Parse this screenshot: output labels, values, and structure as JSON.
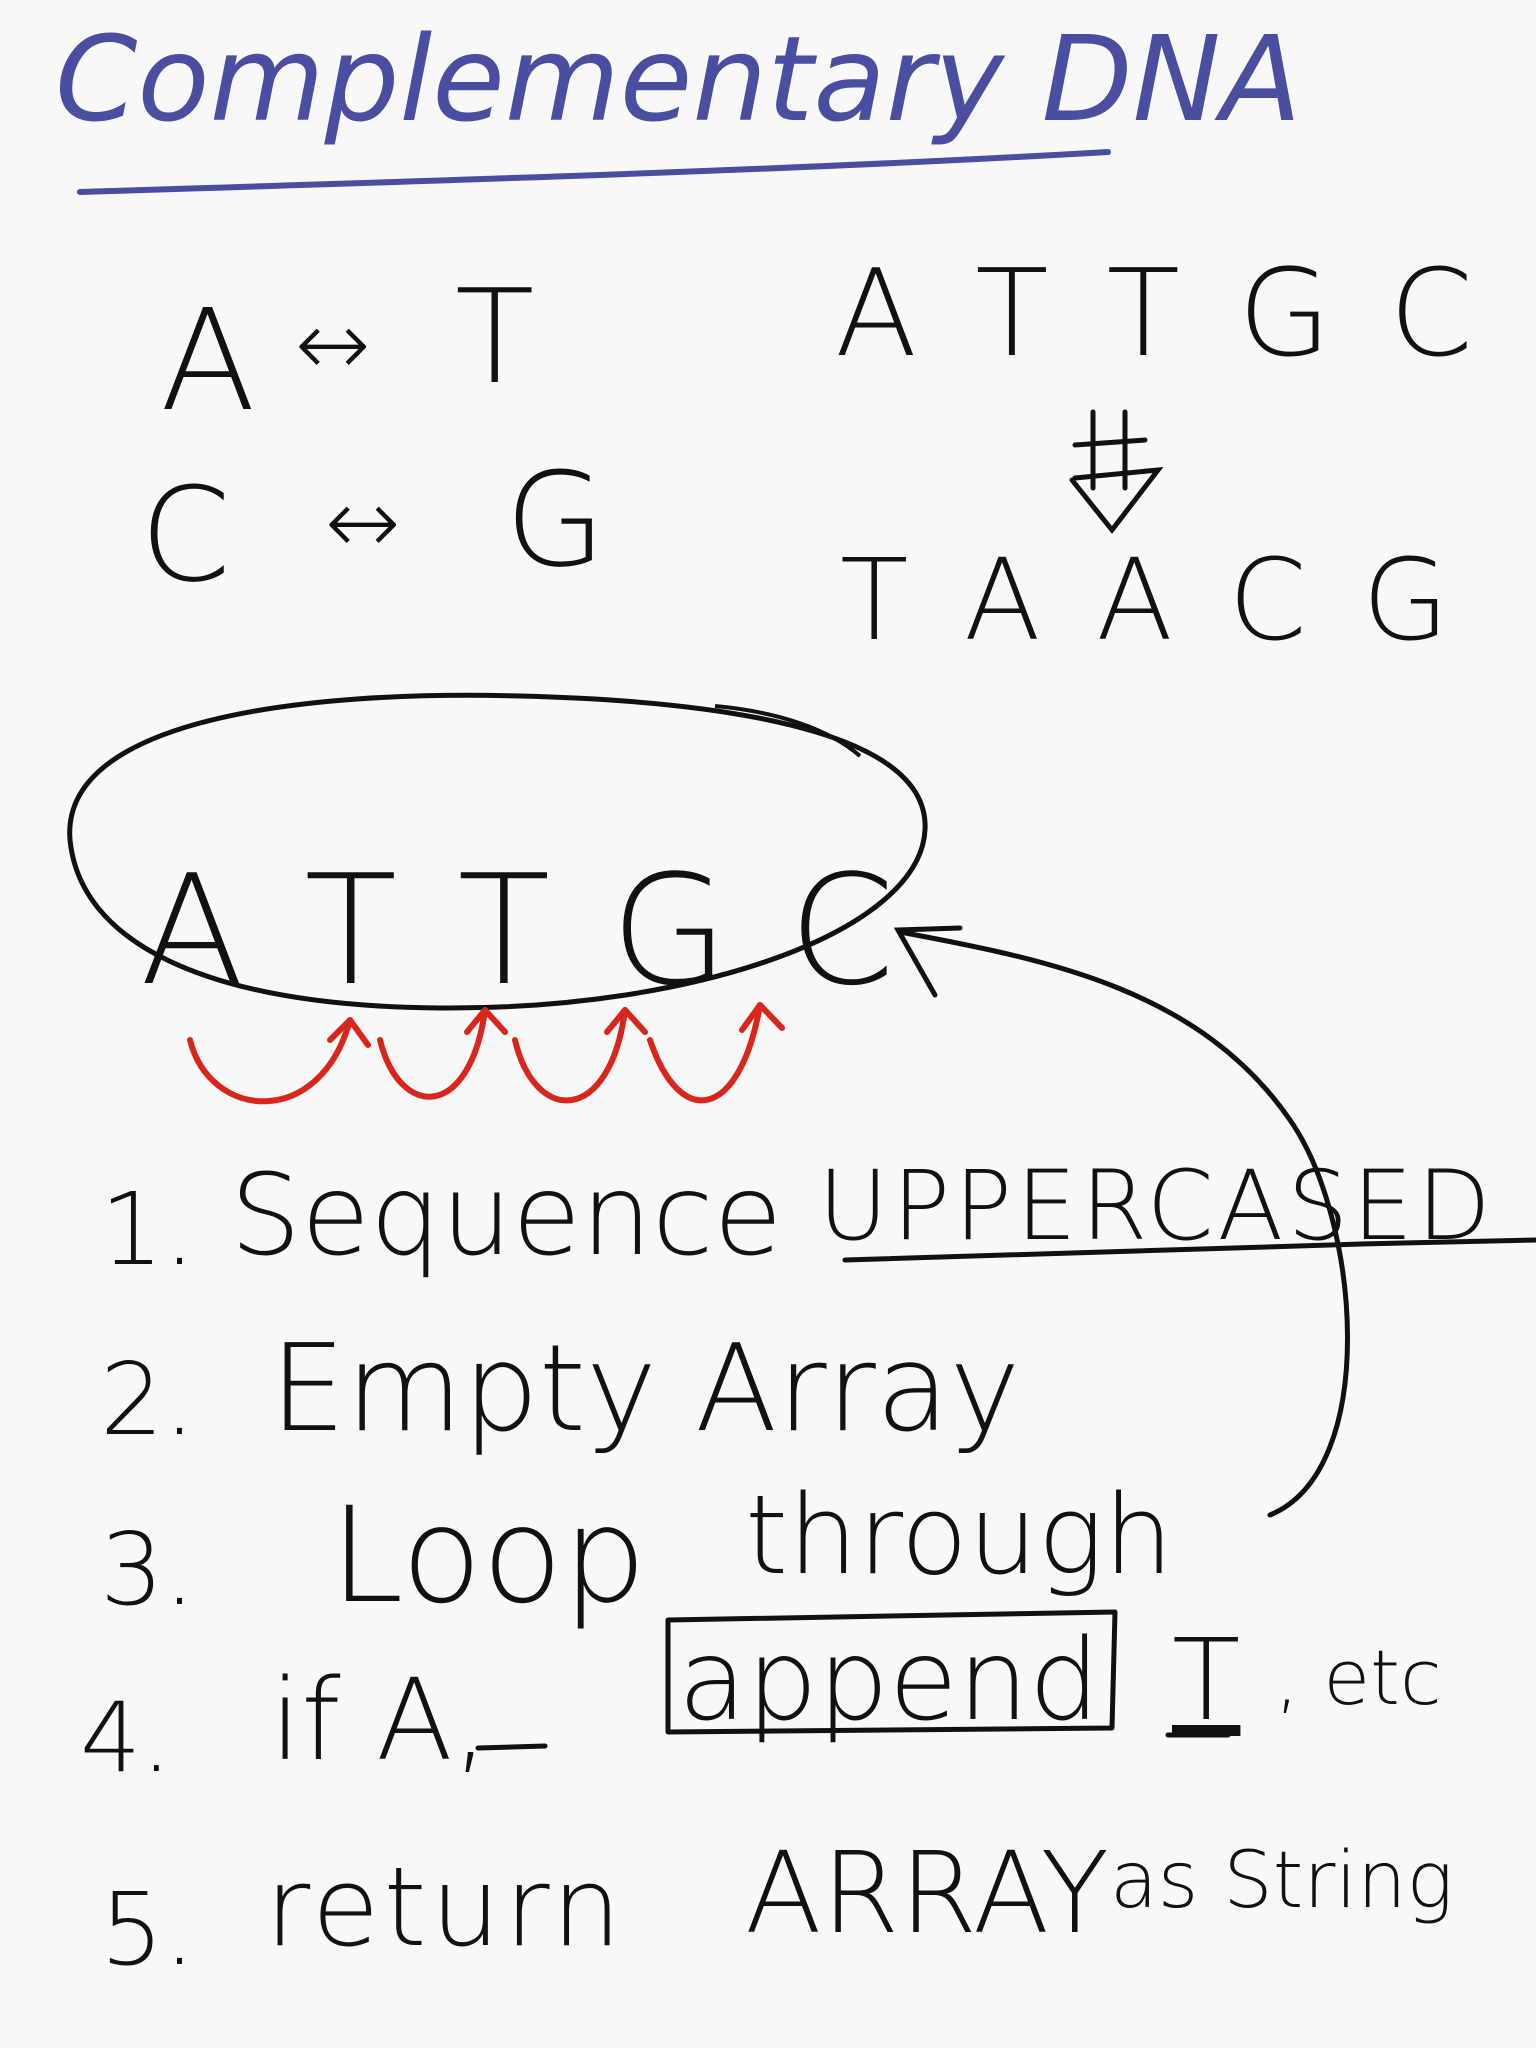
{
  "colors": {
    "title_ink": "#4a4ea0",
    "ink": "#111111",
    "arrow_red": "#d9261c",
    "background": "#f8f8f8"
  },
  "title": "Complementary DNA",
  "pairs": [
    {
      "left": "A",
      "arrow": "↔",
      "right": "T"
    },
    {
      "left": "C",
      "arrow": "↔",
      "right": "G"
    }
  ],
  "example": {
    "input": "A T T G C",
    "arrow_icon": "down-arrow-icon",
    "output": "T A A C G"
  },
  "sequence": "A T T G C",
  "steps": [
    {
      "num": "1.",
      "text": "Sequence",
      "extra": "UPPERCASED"
    },
    {
      "num": "2.",
      "text": "Empty Array",
      "extra": ""
    },
    {
      "num": "3.",
      "text": "Loop",
      "extra": "through"
    },
    {
      "num": "4.",
      "text": "if A,",
      "extra": "append",
      "tail": "T",
      "etc": ", etc"
    },
    {
      "num": "5.",
      "text": "return",
      "extra": "ARRAY",
      "tail": "as String"
    }
  ]
}
